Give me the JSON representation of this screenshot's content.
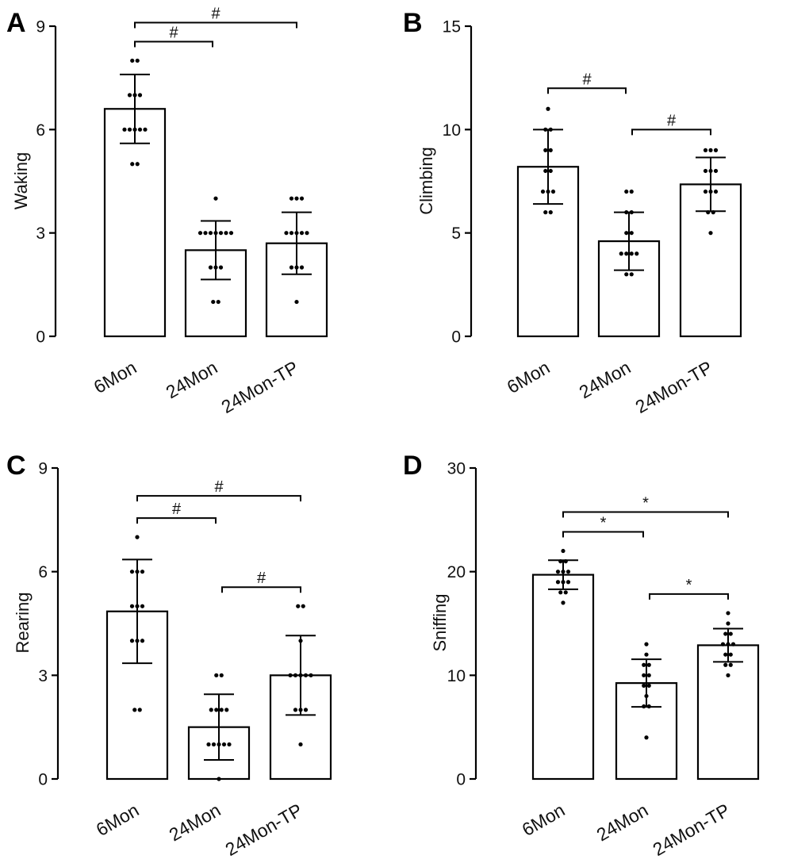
{
  "chart_data": [
    {
      "type": "bar",
      "panel": "A",
      "ylabel": "Waking",
      "xlabel": "",
      "categories": [
        "6Mon",
        "24Mon",
        "24Mon-TP"
      ],
      "ylim": [
        0,
        9
      ],
      "yticks": [
        0,
        3,
        6,
        9
      ],
      "values": [
        6.6,
        2.5,
        2.7
      ],
      "sd": [
        1.0,
        0.85,
        0.9
      ],
      "points": [
        [
          8,
          8,
          7,
          7,
          7,
          6,
          6,
          6,
          6,
          6,
          5,
          5
        ],
        [
          4,
          3,
          3,
          3,
          3,
          3,
          3,
          3,
          2,
          2,
          2,
          1,
          1
        ],
        [
          4,
          4,
          4,
          3,
          3,
          3,
          3,
          3,
          2,
          2,
          2,
          1
        ]
      ],
      "significance": [
        {
          "from": 0,
          "to": 1,
          "label": "#",
          "level": 0
        },
        {
          "from": 0,
          "to": 2,
          "label": "#",
          "level": 1
        }
      ]
    },
    {
      "type": "bar",
      "panel": "B",
      "ylabel": "Climbing",
      "xlabel": "",
      "categories": [
        "6Mon",
        "24Mon",
        "24Mon-TP"
      ],
      "ylim": [
        0,
        15
      ],
      "yticks": [
        0,
        5,
        10,
        15
      ],
      "values": [
        8.2,
        4.6,
        7.35
      ],
      "sd": [
        1.8,
        1.4,
        1.3
      ],
      "points": [
        [
          11,
          10,
          10,
          9,
          9,
          8,
          8,
          7,
          7,
          7,
          6,
          6
        ],
        [
          7,
          7,
          6,
          6,
          5,
          5,
          4,
          4,
          4,
          4,
          3,
          3
        ],
        [
          9,
          9,
          9,
          8,
          8,
          8,
          7,
          7,
          7,
          6,
          6,
          5
        ]
      ],
      "significance": [
        {
          "from": 0,
          "to": 1,
          "label": "#",
          "level": 0
        },
        {
          "from": 1,
          "to": 2,
          "label": "#",
          "level": 0
        }
      ]
    },
    {
      "type": "bar",
      "panel": "C",
      "ylabel": "Rearing",
      "xlabel": "",
      "categories": [
        "6Mon",
        "24Mon",
        "24Mon-TP"
      ],
      "ylim": [
        0,
        9
      ],
      "yticks": [
        0,
        3,
        6,
        9
      ],
      "values": [
        4.85,
        1.5,
        3.0
      ],
      "sd": [
        1.5,
        0.95,
        1.15
      ],
      "points": [
        [
          7,
          6,
          6,
          6,
          5,
          5,
          5,
          4,
          4,
          4,
          2,
          2
        ],
        [
          3,
          3,
          2,
          2,
          2,
          2,
          1,
          1,
          1,
          1,
          1,
          0
        ],
        [
          5,
          5,
          4,
          3,
          3,
          3,
          3,
          3,
          2,
          2,
          2,
          1
        ]
      ],
      "significance": [
        {
          "from": 0,
          "to": 1,
          "label": "#",
          "level": 0
        },
        {
          "from": 1,
          "to": 2,
          "label": "#",
          "level": 0
        },
        {
          "from": 0,
          "to": 2,
          "label": "#",
          "level": 1
        }
      ]
    },
    {
      "type": "bar",
      "panel": "D",
      "ylabel": "Sniffing",
      "xlabel": "",
      "categories": [
        "6Mon",
        "24Mon",
        "24Mon-TP"
      ],
      "ylim": [
        0,
        30
      ],
      "yticks": [
        0,
        10,
        20,
        30
      ],
      "values": [
        19.7,
        9.25,
        12.9
      ],
      "sd": [
        1.4,
        2.3,
        1.6
      ],
      "points": [
        [
          22,
          21,
          21,
          20,
          20,
          20,
          19,
          19,
          19,
          18,
          18,
          17
        ],
        [
          13,
          12,
          11,
          11,
          10,
          10,
          9,
          9,
          8,
          7,
          7,
          4
        ],
        [
          16,
          15,
          14,
          14,
          13,
          13,
          13,
          12,
          12,
          11,
          11,
          10
        ]
      ],
      "significance": [
        {
          "from": 0,
          "to": 1,
          "label": "*",
          "level": 0
        },
        {
          "from": 1,
          "to": 2,
          "label": "*",
          "level": 0
        },
        {
          "from": 0,
          "to": 2,
          "label": "*",
          "level": 1
        }
      ]
    }
  ]
}
